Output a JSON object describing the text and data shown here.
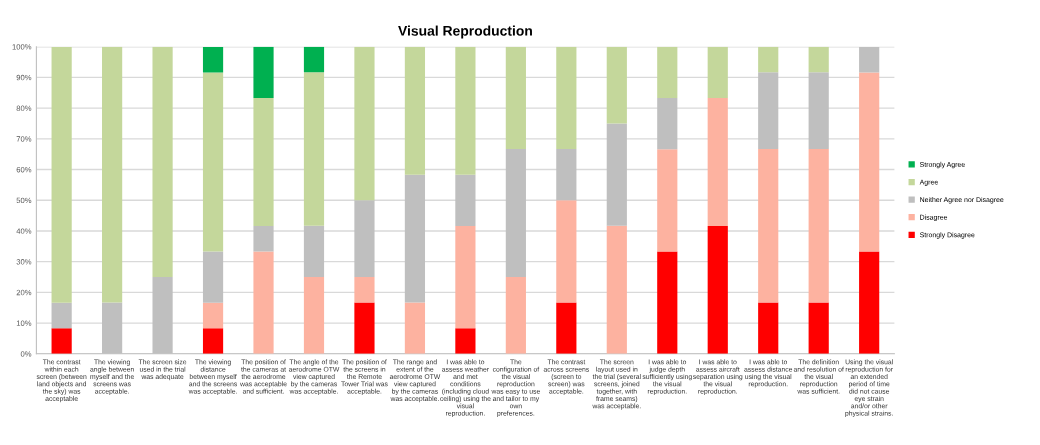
{
  "chart_data": {
    "type": "bar",
    "title": "Visual Reproduction",
    "stacked": true,
    "legend": "right",
    "grid": "y",
    "categories": [
      "The contrast\nwithin each\nscreen (between\nland objects and\nthe sky) was\nacceptable",
      "The viewing\nangle between\nmyself and the\nscreens was\nacceptable.",
      "The screen size\nused in the trial\nwas adequate",
      "The viewing\ndistance\nbetween myself\nand the screens\nwas acceptable.",
      "The position of\nthe cameras at\nthe aerodrome\nwas acceptable\nand sufficient.",
      "The angle of the\naerodrome OTW\nview captured\nby the cameras\nwas acceptable.",
      "The position of\nthe screens in\nthe Remote\nTower Trial was\nacceptable.",
      "The range and\nextent of the\naerodrome OTW\nview captured\nby the cameras\nwas acceptable.",
      "I was able to\nassess weather\nand met\nconditions\n(including cloud\nceiling) using the\nvisual\nreproduction.",
      "The\nconfiguration of\nthe visual\nreproduction\nwas easy to use\nand tailor to my\nown\npreferences.",
      "The contrast\nacross screens\n(screen to\nscreen) was\nacceptable.",
      "The screen\nlayout used in\nthe trial (several\nscreens, joined\ntogether, with\nframe seams)\nwas acceptable.",
      "I was able to\njudge depth\nsufficiently using\nthe visual\nreproduction.",
      "I was able to\nassess aircraft\nseparation using\nthe visual\nreproduction.",
      "I was able to\nassess distance\nusing the visual\nreproduction.",
      "The definition\nand resolution of\nthe visual\nreproduction\nwas sufficient.",
      "Using the visual\nreproduction for\nan extended\nperiod of time\ndid not cause\neye strain\nand/or other\nphysical strains."
    ],
    "series": [
      {
        "name": "Strongly Disagree",
        "color": "#ff0000",
        "values": [
          8.3,
          0,
          0,
          8.3,
          0,
          0,
          16.7,
          0,
          8.3,
          0,
          16.7,
          0,
          33.3,
          41.6,
          16.7,
          16.7,
          33.3
        ]
      },
      {
        "name": "Disagree",
        "color": "#fdb2a0",
        "values": [
          0,
          0,
          0,
          8.3,
          33.3,
          25,
          8.3,
          16.7,
          33.3,
          25,
          33.3,
          41.7,
          33.3,
          41.7,
          50,
          50,
          58.3
        ]
      },
      {
        "name": "Neither Agree nor Disagree",
        "color": "#bfbfbf",
        "values": [
          8.3,
          16.7,
          25,
          16.7,
          8.3,
          16.7,
          25,
          41.6,
          16.7,
          41.7,
          16.7,
          33.3,
          16.7,
          0,
          25,
          25,
          8.3
        ]
      },
      {
        "name": "Agree",
        "color": "#c4d79b",
        "values": [
          83.3,
          83.3,
          75,
          58.3,
          41.7,
          50,
          50,
          41.7,
          41.7,
          33.3,
          33.3,
          25,
          16.7,
          16.7,
          8.3,
          8.3,
          0
        ]
      },
      {
        "name": "Strongly Agree",
        "color": "#00b050",
        "values": [
          0,
          0,
          0,
          8.3,
          16.7,
          8.3,
          0,
          0,
          0,
          0,
          0,
          0,
          0,
          0,
          0,
          0,
          0
        ]
      }
    ],
    "ylim": [
      0,
      100
    ],
    "yticks": [
      {
        "value": 0,
        "label": "0%"
      },
      {
        "value": 10,
        "label": "10%"
      },
      {
        "value": 20,
        "label": "20%"
      },
      {
        "value": 30,
        "label": "30%"
      },
      {
        "value": 40,
        "label": "40%"
      },
      {
        "value": 50,
        "label": "50%"
      },
      {
        "value": 60,
        "label": "60%"
      },
      {
        "value": 70,
        "label": "70%"
      },
      {
        "value": 80,
        "label": "80%"
      },
      {
        "value": 90,
        "label": "90%"
      },
      {
        "value": 100,
        "label": "100%"
      }
    ]
  }
}
